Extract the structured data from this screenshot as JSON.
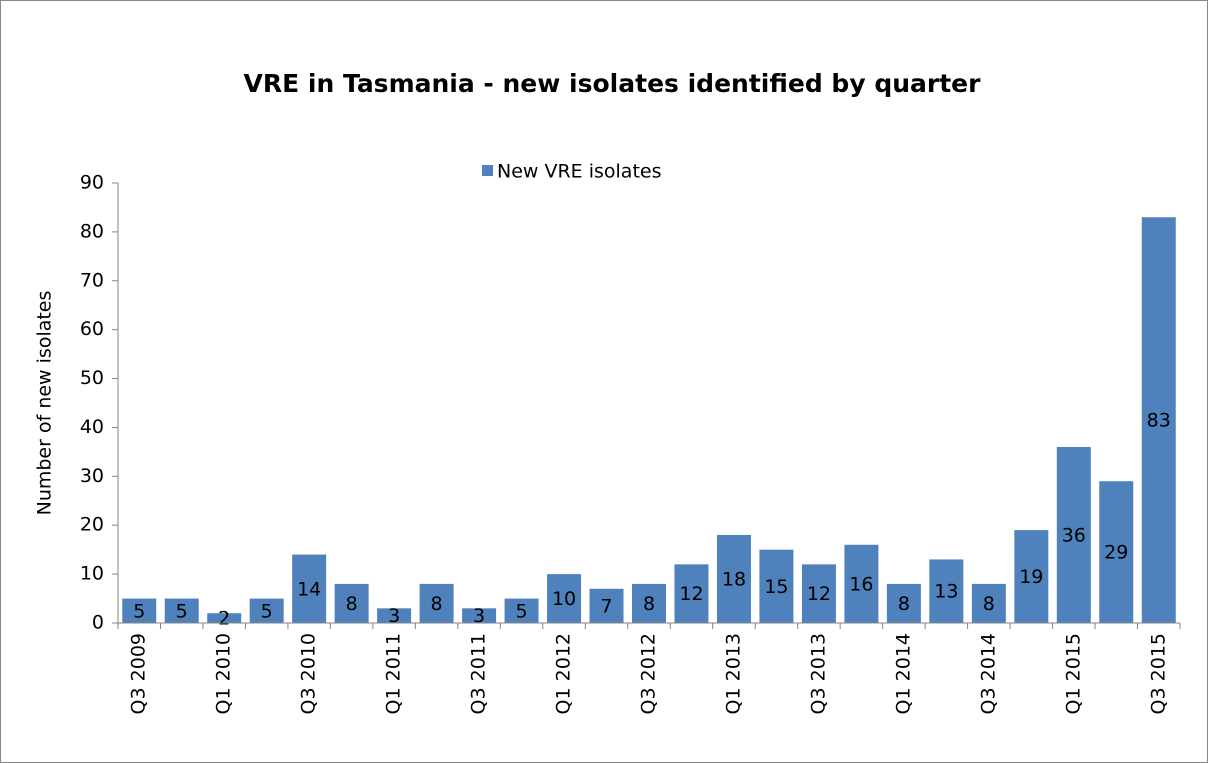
{
  "chart_data": {
    "type": "bar",
    "title": "VRE in Tasmania - new isolates identified by quarter",
    "y_label": "Number of new isolates",
    "categories": [
      "Q3 2009",
      null,
      "Q1 2010",
      null,
      "Q3 2010",
      null,
      "Q1 2011",
      null,
      "Q3 2011",
      null,
      "Q1 2012",
      null,
      "Q3 2012",
      null,
      "Q1 2013",
      null,
      "Q3 2013",
      null,
      "Q1 2014",
      null,
      "Q3 2014",
      null,
      "Q1 2015",
      null,
      "Q3 2015"
    ],
    "series": [
      {
        "name": "New VRE isolates",
        "color": "#4f81bd",
        "values": [
          5,
          5,
          2,
          5,
          14,
          8,
          3,
          8,
          3,
          5,
          10,
          7,
          8,
          12,
          18,
          15,
          12,
          16,
          8,
          13,
          8,
          19,
          36,
          29,
          83
        ]
      }
    ],
    "ylim": [
      0,
      90
    ],
    "yticks": [
      0,
      10,
      20,
      30,
      40,
      50,
      60,
      70,
      80,
      90
    ],
    "legend": "top",
    "grid": false
  }
}
